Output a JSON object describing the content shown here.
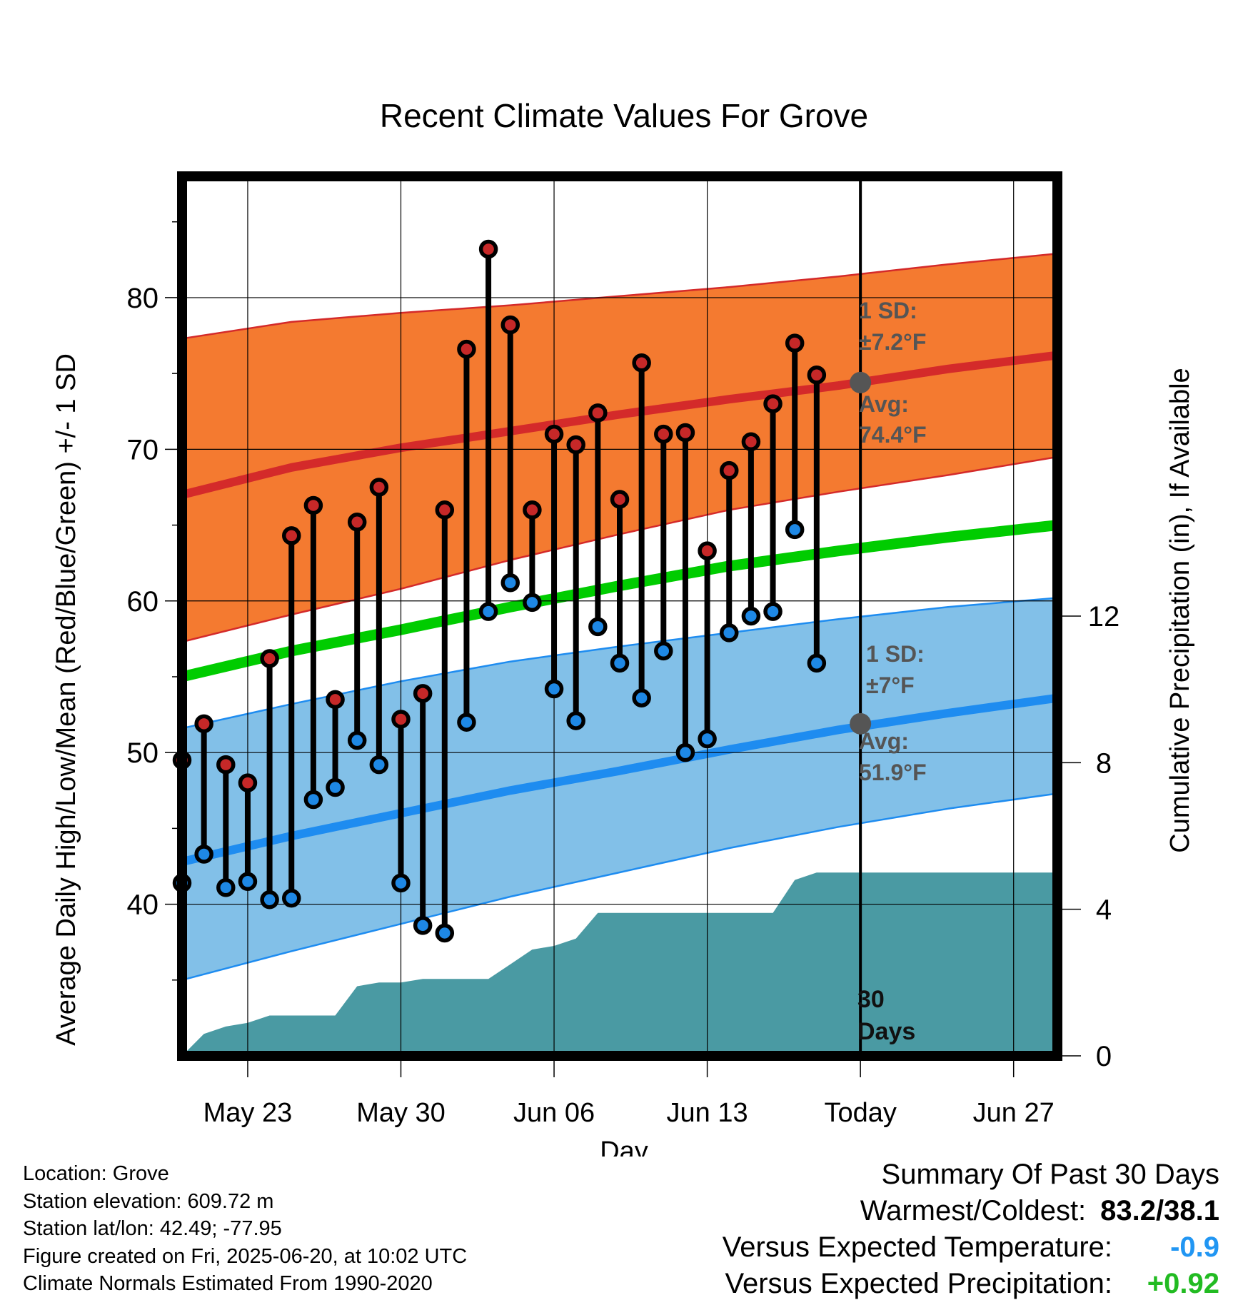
{
  "chart_data": {
    "type": "line",
    "title": "Recent Climate Values For Grove",
    "xlabel": "Day",
    "ylabel": "Average Daily High/Low/Mean (Red/Blue/Green) +/- 1 SD",
    "y2label": "Cumulative Precipitation (in), If Available",
    "ylim": [
      30,
      88
    ],
    "y2lim": [
      0,
      24
    ],
    "xlim": [
      "2025-05-20",
      "2025-06-29"
    ],
    "yticks": [
      40,
      50,
      60,
      70,
      80
    ],
    "y2ticks": [
      0,
      4,
      8,
      12
    ],
    "xticks": [
      {
        "date": "2025-05-23",
        "label": "May 23"
      },
      {
        "date": "2025-05-30",
        "label": "May 30"
      },
      {
        "date": "2025-06-06",
        "label": "Jun 06"
      },
      {
        "date": "2025-06-13",
        "label": "Jun 13"
      },
      {
        "date": "2025-06-20",
        "label": "Today"
      },
      {
        "date": "2025-06-27",
        "label": "Jun 27"
      }
    ],
    "grid": true,
    "colors": {
      "high_band": "#f47a30",
      "high_line": "#d42a2a",
      "low_band": "#82c0e8",
      "low_line": "#1e8cf0",
      "mean_line": "#00cc00",
      "precip": "#4a9aa3",
      "high_marker": "#c62828",
      "low_marker": "#1e88e5",
      "annot": "#555555"
    },
    "normals": {
      "dates": [
        "2025-05-20",
        "2025-05-25",
        "2025-05-30",
        "2025-06-04",
        "2025-06-09",
        "2025-06-14",
        "2025-06-19",
        "2025-06-24",
        "2025-06-29"
      ],
      "high_avg": [
        67.0,
        68.8,
        70.1,
        71.2,
        72.3,
        73.3,
        74.2,
        75.3,
        76.2
      ],
      "high_upper": [
        77.3,
        78.4,
        79.0,
        79.5,
        80.1,
        80.7,
        81.4,
        82.2,
        82.9
      ],
      "high_lower": [
        57.3,
        59.1,
        60.8,
        62.7,
        64.4,
        66.0,
        67.2,
        68.3,
        69.5
      ],
      "mean": [
        55.0,
        56.7,
        58.1,
        59.6,
        61.0,
        62.3,
        63.3,
        64.2,
        65.0
      ],
      "low_avg": [
        42.8,
        44.5,
        46.0,
        47.5,
        48.8,
        50.2,
        51.5,
        52.6,
        53.6
      ],
      "low_upper": [
        51.6,
        53.2,
        54.7,
        56.0,
        57.0,
        57.9,
        58.8,
        59.6,
        60.2
      ],
      "low_lower": [
        35.0,
        36.9,
        38.7,
        40.5,
        42.1,
        43.7,
        45.1,
        46.3,
        47.3
      ]
    },
    "series": [
      {
        "name": "High",
        "x": [
          "2025-05-20",
          "2025-05-21",
          "2025-05-22",
          "2025-05-23",
          "2025-05-24",
          "2025-05-25",
          "2025-05-26",
          "2025-05-27",
          "2025-05-28",
          "2025-05-29",
          "2025-05-30",
          "2025-05-31",
          "2025-06-01",
          "2025-06-02",
          "2025-06-03",
          "2025-06-04",
          "2025-06-05",
          "2025-06-06",
          "2025-06-07",
          "2025-06-08",
          "2025-06-09",
          "2025-06-10",
          "2025-06-11",
          "2025-06-12",
          "2025-06-13",
          "2025-06-14",
          "2025-06-15",
          "2025-06-16",
          "2025-06-17",
          "2025-06-18",
          "2025-06-19"
        ],
        "values": [
          49.5,
          51.9,
          49.2,
          48.0,
          56.2,
          64.3,
          66.3,
          53.5,
          65.2,
          67.5,
          52.2,
          53.9,
          66.0,
          76.6,
          83.2,
          78.2,
          66.0,
          71.0,
          70.3,
          72.4,
          66.7,
          75.7,
          71.0,
          71.1,
          63.3,
          68.6,
          70.5,
          73.0,
          77.0,
          74.9,
          null
        ]
      },
      {
        "name": "Low",
        "x": [
          "2025-05-20",
          "2025-05-21",
          "2025-05-22",
          "2025-05-23",
          "2025-05-24",
          "2025-05-25",
          "2025-05-26",
          "2025-05-27",
          "2025-05-28",
          "2025-05-29",
          "2025-05-30",
          "2025-05-31",
          "2025-06-01",
          "2025-06-02",
          "2025-06-03",
          "2025-06-04",
          "2025-06-05",
          "2025-06-06",
          "2025-06-07",
          "2025-06-08",
          "2025-06-09",
          "2025-06-10",
          "2025-06-11",
          "2025-06-12",
          "2025-06-13",
          "2025-06-14",
          "2025-06-15",
          "2025-06-16",
          "2025-06-17",
          "2025-06-18",
          "2025-06-19"
        ],
        "values": [
          41.4,
          43.3,
          41.1,
          41.5,
          40.3,
          40.4,
          46.9,
          47.7,
          50.8,
          49.2,
          41.4,
          38.6,
          38.1,
          52.0,
          59.3,
          61.2,
          59.9,
          54.2,
          52.1,
          58.3,
          55.9,
          53.6,
          56.7,
          50.0,
          50.9,
          57.9,
          59.0,
          59.3,
          64.7,
          55.9,
          null
        ]
      },
      {
        "name": "Cumulative Precipitation",
        "x": [
          "2025-05-20",
          "2025-05-21",
          "2025-05-22",
          "2025-05-23",
          "2025-05-24",
          "2025-05-25",
          "2025-05-26",
          "2025-05-27",
          "2025-05-28",
          "2025-05-29",
          "2025-05-30",
          "2025-05-31",
          "2025-06-01",
          "2025-06-02",
          "2025-06-03",
          "2025-06-04",
          "2025-06-05",
          "2025-06-06",
          "2025-06-07",
          "2025-06-08",
          "2025-06-09",
          "2025-06-10",
          "2025-06-11",
          "2025-06-12",
          "2025-06-13",
          "2025-06-14",
          "2025-06-15",
          "2025-06-16",
          "2025-06-17",
          "2025-06-18",
          "2025-06-19",
          "2025-06-20",
          "2025-06-29"
        ],
        "values": [
          0.0,
          0.6,
          0.8,
          0.9,
          1.1,
          1.1,
          1.1,
          1.1,
          1.9,
          2.0,
          2.0,
          2.1,
          2.1,
          2.1,
          2.1,
          2.5,
          2.9,
          3.0,
          3.2,
          3.9,
          3.9,
          3.9,
          3.9,
          3.9,
          3.9,
          3.9,
          3.9,
          3.9,
          4.8,
          5.0,
          5.0,
          5.0,
          5.0
        ]
      }
    ],
    "today": "2025-06-20",
    "annotations": {
      "high_sd_title": "1 SD:",
      "high_sd_value": "±7.2°F",
      "high_avg_title": "Avg:",
      "high_avg_value": "74.4°F",
      "high_avg": 74.4,
      "low_sd_title": "1 SD:",
      "low_sd_value": "±7°F",
      "low_avg_title": "Avg:",
      "low_avg_value": "51.9°F",
      "low_avg": 51.9,
      "window_count": "30",
      "window_unit": "Days"
    }
  },
  "info": {
    "location": "Location: Grove",
    "elevation": "Station elevation: 609.72 m",
    "latlon": "Station lat/lon: 42.49; -77.95",
    "created": "Figure created on Fri, 2025-06-20, at 10:02 UTC",
    "normals": "Climate Normals Estimated From 1990-2020"
  },
  "summary": {
    "title": "Summary Of Past 30 Days",
    "warm_cold_label": "Warmest/Coldest:",
    "warm_cold_value": "83.2/38.1",
    "temp_label": "Versus Expected Temperature:",
    "temp_value": "-0.9",
    "temp_color": "#2196f3",
    "precip_label": "Versus Expected Precipitation:",
    "precip_value": "+0.92",
    "precip_color": "#22bb22"
  }
}
